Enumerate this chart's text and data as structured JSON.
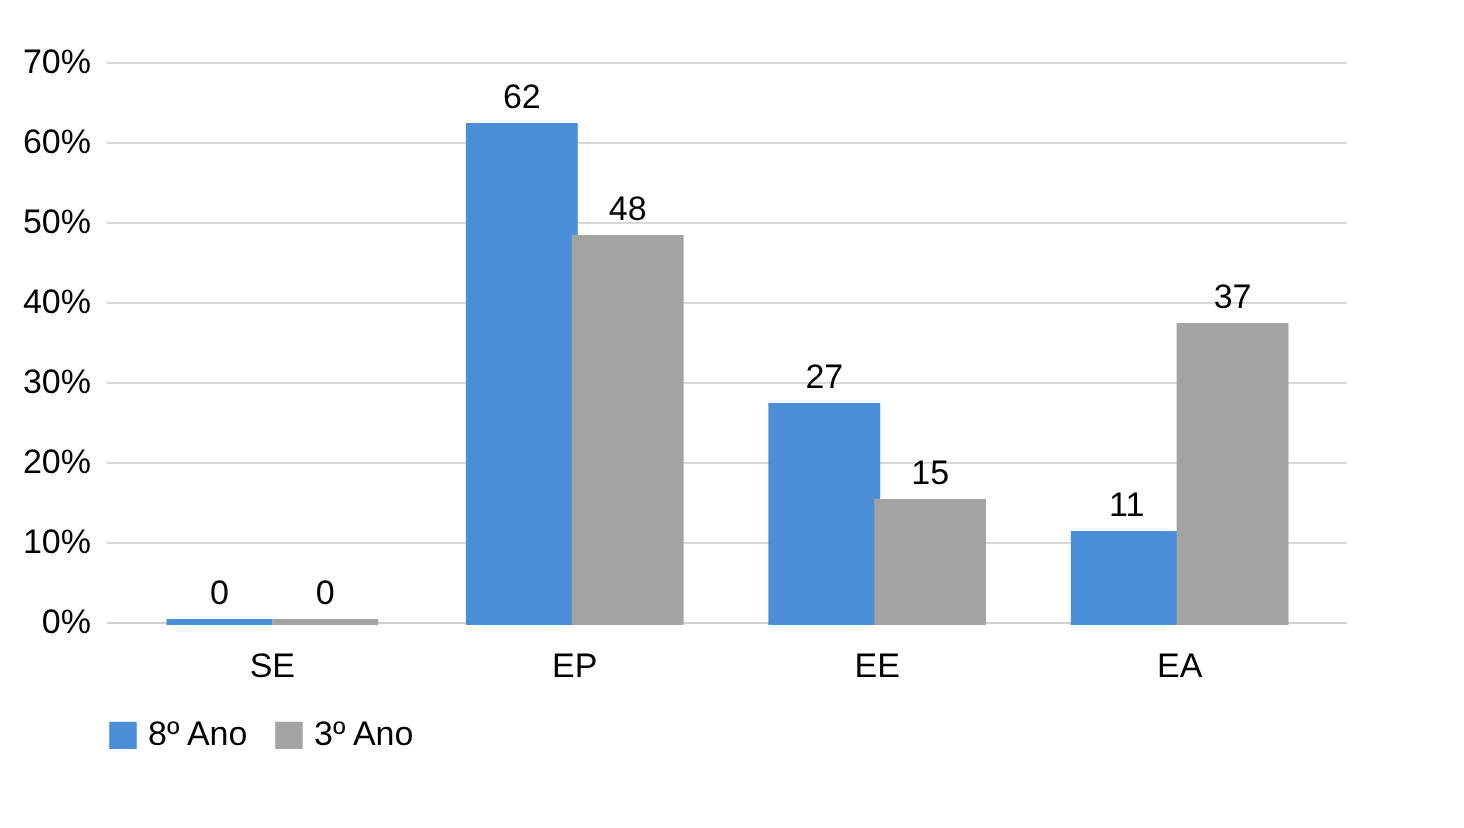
{
  "chart_data": {
    "type": "bar",
    "categories": [
      "SE",
      "EP",
      "EE",
      "EA"
    ],
    "series": [
      {
        "name": "8º Ano",
        "color": "#4a8fd8",
        "values": [
          0,
          62,
          27,
          11
        ]
      },
      {
        "name": "3º Ano",
        "color": "#a3a3a3",
        "values": [
          0,
          48,
          15,
          37
        ]
      }
    ],
    "ylim": [
      0,
      70
    ],
    "yticks": [
      {
        "value": 0,
        "label": "0%"
      },
      {
        "value": 10,
        "label": "10%"
      },
      {
        "value": 20,
        "label": "20%"
      },
      {
        "value": 30,
        "label": "30%"
      },
      {
        "value": 40,
        "label": "40%"
      },
      {
        "value": 50,
        "label": "50%"
      },
      {
        "value": 60,
        "label": "60%"
      },
      {
        "value": 70,
        "label": "70%"
      }
    ],
    "grid": "y",
    "legend": "bottom",
    "data_labels": true
  }
}
